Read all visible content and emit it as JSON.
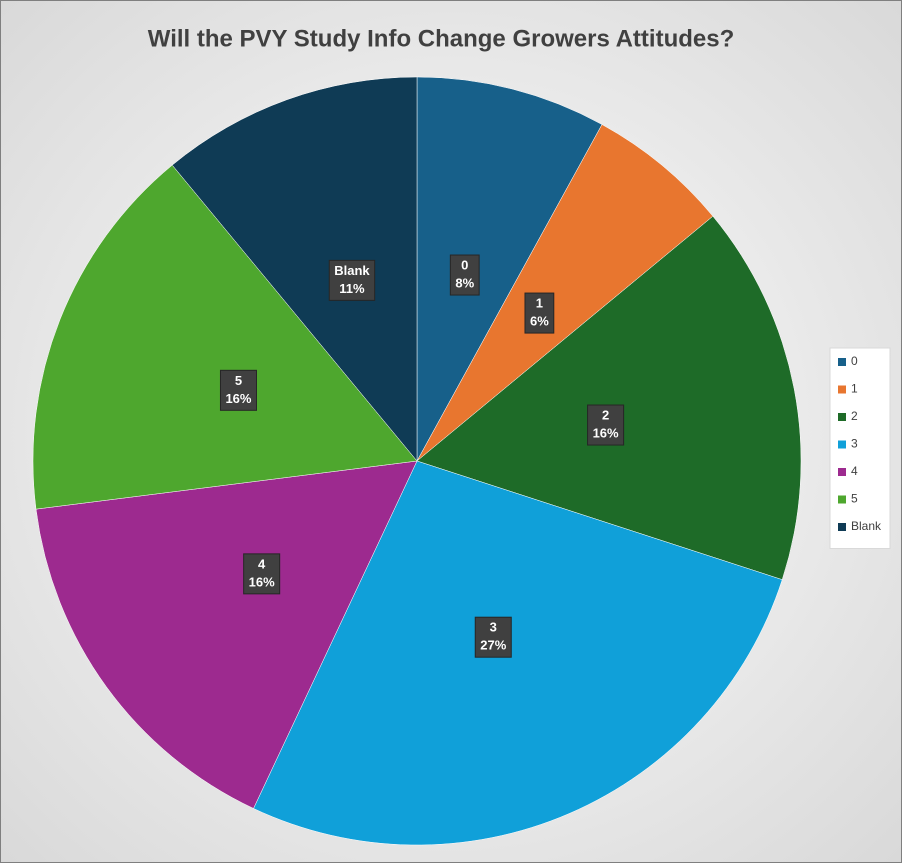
{
  "chart_data": {
    "type": "pie",
    "title": "Will the PVY Study Info Change Growers Attitudes?",
    "categories": [
      "0",
      "1",
      "2",
      "3",
      "4",
      "5",
      "Blank"
    ],
    "values": [
      8,
      6,
      16,
      27,
      16,
      16,
      11
    ],
    "value_labels": [
      "8%",
      "6%",
      "16%",
      "27%",
      "16%",
      "16%",
      "11%"
    ],
    "colors": [
      "#17608a",
      "#e8762f",
      "#1e6b28",
      "#10a0d9",
      "#9d2a8f",
      "#4ea72e",
      "#0f3b55"
    ],
    "legend": "right"
  }
}
